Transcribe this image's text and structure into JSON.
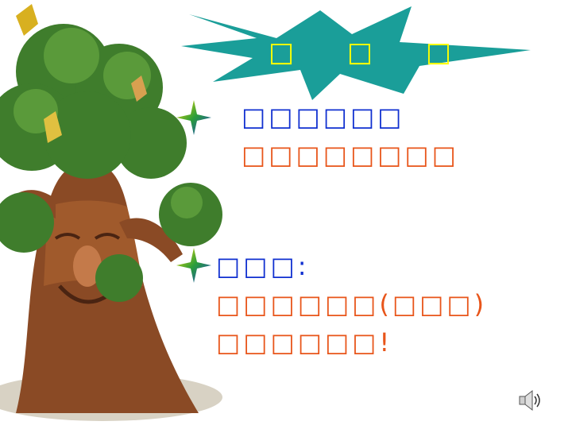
{
  "title": {
    "text": "□ □ □"
  },
  "items": [
    {
      "lines": [
        {
          "text": "□□□□□□",
          "color": "#1030d0"
        },
        {
          "text": "□□□□□□□□",
          "color": "#e8551a"
        }
      ]
    },
    {
      "lines": [
        {
          "text": "□□□:",
          "color": "#1030d0"
        },
        {
          "text": "□□□□□□(□□□)",
          "color": "#e8551a"
        },
        {
          "text": "□□□□□□!",
          "color": "#e8551a"
        }
      ]
    }
  ],
  "icons": {
    "bullet": "four-point-star-icon",
    "audio": "speaker-icon"
  },
  "colors": {
    "title_burst": "#1a9e99",
    "title_text": "#ffff00",
    "foliage": "#3f7d2c",
    "trunk": "#8a4a25"
  }
}
